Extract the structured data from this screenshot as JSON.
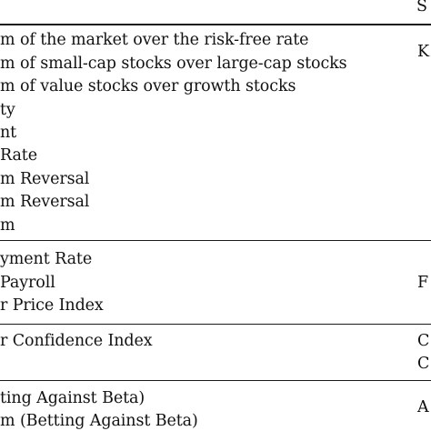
{
  "table": {
    "header": {
      "source": "S"
    },
    "sections": [
      {
        "rows": [
          "m of the market over the risk-free rate",
          "m of small-cap stocks over large-cap stocks",
          "m of value stocks over growth stocks",
          "ty",
          "nt",
          " Rate",
          "m Reversal",
          "m Reversal",
          "m"
        ],
        "source": "K"
      },
      {
        "rows": [
          "yment Rate",
          " Payroll",
          "r Price Index"
        ],
        "source": "F"
      },
      {
        "rows": [
          "r Confidence Index"
        ],
        "sources": [
          "C",
          "C"
        ]
      },
      {
        "rows": [
          "ting Against Beta)",
          "m (Betting Against Beta)"
        ],
        "source": "A"
      }
    ]
  }
}
